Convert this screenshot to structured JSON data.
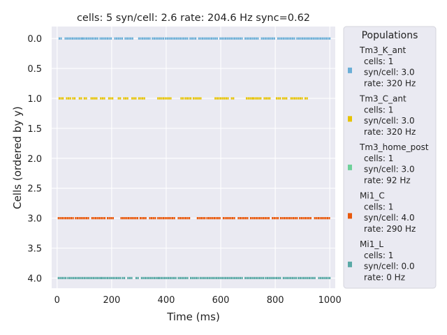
{
  "chart_data": {
    "type": "scatter",
    "title": "cells: 5   syn/cell: 2.6   rate: 204.6 Hz    sync=0.62",
    "xlabel": "Time (ms)",
    "ylabel": "Cells (ordered by y)",
    "xlim": [
      -20,
      1020
    ],
    "ylim": [
      4.17,
      -0.2
    ],
    "y_inverted": true,
    "grid": true,
    "xticks": [
      0,
      200,
      400,
      600,
      800,
      1000
    ],
    "yticks": [
      0.0,
      0.5,
      1.0,
      1.5,
      2.0,
      2.5,
      3.0,
      3.5,
      4.0
    ],
    "xtick_labels": [
      "0",
      "200",
      "400",
      "600",
      "800",
      "1000"
    ],
    "ytick_labels": [
      "0.0",
      "0.5",
      "1.0",
      "1.5",
      "2.0",
      "2.5",
      "3.0",
      "3.5",
      "4.0"
    ],
    "legend": {
      "title": "Populations",
      "position": "outside right",
      "entries": [
        {
          "name": "Tm3_K_ant",
          "lines": [
            "cells: 1",
            "syn/cell: 3.0",
            "rate: 320 Hz"
          ],
          "color": "#6aaed6"
        },
        {
          "name": "Tm3_C_ant",
          "lines": [
            "cells: 1",
            "syn/cell: 3.0",
            "rate: 320 Hz"
          ],
          "color": "#e6c300"
        },
        {
          "name": "Tm3_home_post",
          "lines": [
            "cells: 1",
            "syn/cell: 3.0",
            "rate: 92 Hz"
          ],
          "color": "#6fd19a"
        },
        {
          "name": "Mi1_C",
          "lines": [
            "cells: 1",
            "syn/cell: 4.0",
            "rate: 290 Hz"
          ],
          "color": "#e8590c"
        },
        {
          "name": "Mi1_L",
          "lines": [
            "cells: 1",
            "syn/cell: 0.0",
            "rate: 0 Hz"
          ],
          "color": "#5aa9a6"
        }
      ]
    },
    "series": [
      {
        "name": "Tm3_K_ant",
        "y": 0,
        "color": "#6aaed6",
        "segments": [
          [
            8,
            20
          ],
          [
            30,
            90
          ],
          [
            95,
            150
          ],
          [
            158,
            200
          ],
          [
            212,
            240
          ],
          [
            250,
            280
          ],
          [
            300,
            345
          ],
          [
            350,
            390
          ],
          [
            398,
            480
          ],
          [
            488,
            510
          ],
          [
            520,
            590
          ],
          [
            598,
            680
          ],
          [
            690,
            740
          ],
          [
            750,
            800
          ],
          [
            810,
            870
          ],
          [
            880,
            1000
          ]
        ]
      },
      {
        "name": "Tm3_C_ant",
        "y": 1,
        "color": "#e6c300",
        "segments": [
          [
            8,
            25
          ],
          [
            35,
            50
          ],
          [
            58,
            70
          ],
          [
            82,
            90
          ],
          [
            100,
            112
          ],
          [
            125,
            145
          ],
          [
            160,
            175
          ],
          [
            190,
            205
          ],
          [
            225,
            235
          ],
          [
            245,
            260
          ],
          [
            275,
            290
          ],
          [
            300,
            320
          ],
          [
            370,
            385
          ],
          [
            390,
            420
          ],
          [
            455,
            465
          ],
          [
            470,
            490
          ],
          [
            500,
            530
          ],
          [
            580,
            595
          ],
          [
            600,
            630
          ],
          [
            640,
            650
          ],
          [
            695,
            715
          ],
          [
            720,
            750
          ],
          [
            760,
            780
          ],
          [
            805,
            820
          ],
          [
            828,
            845
          ],
          [
            858,
            880
          ],
          [
            885,
            900
          ],
          [
            910,
            920
          ]
        ]
      },
      {
        "name": "Tm3_home_post",
        "y": 2,
        "color": "#6fd19a",
        "segments": []
      },
      {
        "name": "Mi1_C",
        "y": 3,
        "color": "#e8590c",
        "segments": [
          [
            5,
            60
          ],
          [
            68,
            120
          ],
          [
            128,
            180
          ],
          [
            185,
            205
          ],
          [
            235,
            300
          ],
          [
            305,
            330
          ],
          [
            340,
            360
          ],
          [
            370,
            430
          ],
          [
            445,
            460
          ],
          [
            465,
            490
          ],
          [
            515,
            545
          ],
          [
            550,
            600
          ],
          [
            610,
            655
          ],
          [
            665,
            700
          ],
          [
            710,
            780
          ],
          [
            790,
            815
          ],
          [
            820,
            880
          ],
          [
            890,
            935
          ],
          [
            945,
            1000
          ]
        ]
      },
      {
        "name": "Mi1_L",
        "y": 4,
        "color": "#5aa9a6",
        "segments": [
          [
            5,
            35
          ],
          [
            40,
            95
          ],
          [
            100,
            160
          ],
          [
            165,
            200
          ],
          [
            205,
            235
          ],
          [
            240,
            250
          ],
          [
            260,
            275
          ],
          [
            290,
            300
          ],
          [
            310,
            370
          ],
          [
            375,
            440
          ],
          [
            445,
            480
          ],
          [
            490,
            520
          ],
          [
            525,
            600
          ],
          [
            605,
            680
          ],
          [
            690,
            760
          ],
          [
            765,
            820
          ],
          [
            830,
            880
          ],
          [
            885,
            950
          ],
          [
            960,
            1000
          ]
        ]
      }
    ]
  }
}
